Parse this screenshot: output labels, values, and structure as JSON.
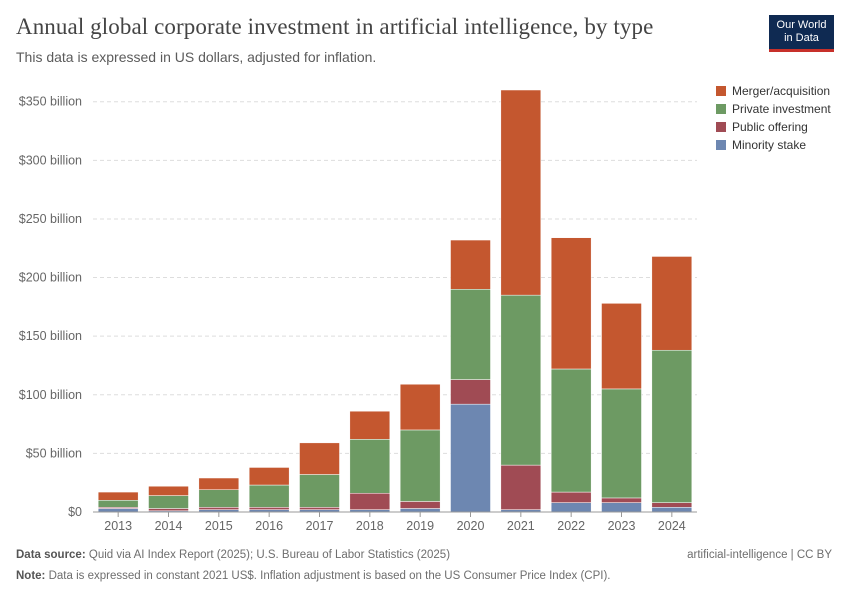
{
  "header": {
    "title": "Annual global corporate investment in artificial intelligence, by type",
    "subtitle": "This data is expressed in US dollars, adjusted for inflation."
  },
  "logo": {
    "line1": "Our World",
    "line2": "in Data"
  },
  "footer": {
    "source_label": "Data source:",
    "source_text": "Quid via AI Index Report (2025); U.S. Bureau of Labor Statistics (2025)",
    "license": "artificial-intelligence | CC BY",
    "note_label": "Note:",
    "note_text": "Data is expressed in constant 2021 US$. Inflation adjustment is based on the US Consumer Price Index (CPI)."
  },
  "colors": {
    "minority": "#6d87b1",
    "public": "#a04b54",
    "private": "#6d9a63",
    "merger": "#c4572f",
    "grid": "#dddddd",
    "axis": "#999999"
  },
  "chart_data": {
    "type": "bar",
    "stacked": true,
    "title": "Annual global corporate investment in artificial intelligence, by type",
    "categories": [
      "2013",
      "2014",
      "2015",
      "2016",
      "2017",
      "2018",
      "2019",
      "2020",
      "2021",
      "2022",
      "2023",
      "2024"
    ],
    "y_ticks": [
      {
        "value": 0,
        "label": "$0"
      },
      {
        "value": 50,
        "label": "$50 billion"
      },
      {
        "value": 100,
        "label": "$100 billion"
      },
      {
        "value": 150,
        "label": "$150 billion"
      },
      {
        "value": 200,
        "label": "$200 billion"
      },
      {
        "value": 250,
        "label": "$250 billion"
      },
      {
        "value": 300,
        "label": "$300 billion"
      },
      {
        "value": 350,
        "label": "$350 billion"
      }
    ],
    "ylim": [
      0,
      360
    ],
    "grid": true,
    "legend_position": "top-right",
    "series": [
      {
        "name": "Minority stake",
        "color": "#6d87b1",
        "values": [
          3,
          1,
          2,
          2,
          2,
          2,
          3,
          92,
          2,
          8,
          8,
          4
        ]
      },
      {
        "name": "Public offering",
        "color": "#a04b54",
        "values": [
          1,
          2,
          2,
          2,
          2,
          14,
          6,
          21,
          38,
          9,
          4,
          4
        ]
      },
      {
        "name": "Private investment",
        "color": "#6d9a63",
        "values": [
          6,
          11,
          15,
          19,
          28,
          46,
          61,
          77,
          145,
          105,
          93,
          130
        ]
      },
      {
        "name": "Merger/acquisition",
        "color": "#c4572f",
        "values": [
          7,
          8,
          10,
          15,
          27,
          24,
          39,
          42,
          175,
          112,
          73,
          80
        ]
      }
    ],
    "legend_order": [
      "Merger/acquisition",
      "Private investment",
      "Public offering",
      "Minority stake"
    ]
  }
}
